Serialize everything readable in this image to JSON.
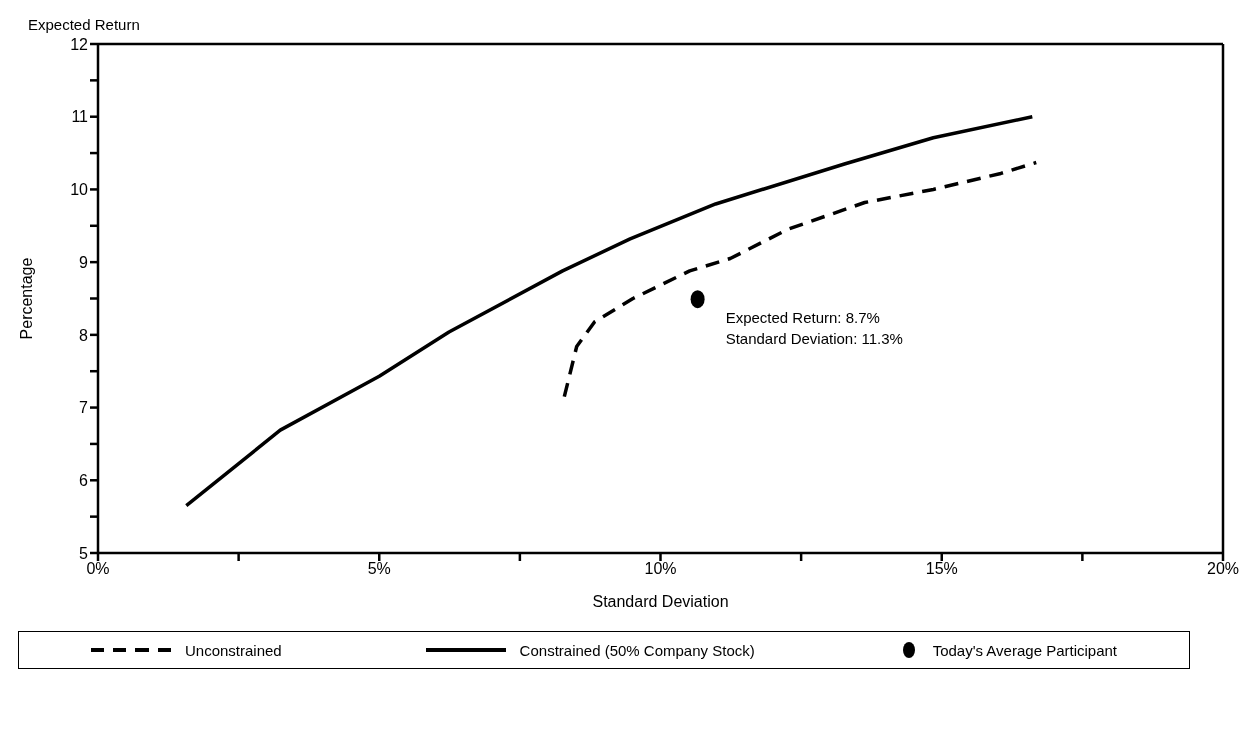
{
  "chart_data": {
    "type": "line",
    "title": "Expected Return",
    "xlabel": "Standard Deviation",
    "ylabel": "Percentage",
    "xlim": [
      0,
      20
    ],
    "xticks": [
      {
        "value": 0,
        "label": "0%"
      },
      {
        "value": 2.5,
        "label": null
      },
      {
        "value": 5,
        "label": "5%"
      },
      {
        "value": 7.5,
        "label": null
      },
      {
        "value": 10,
        "label": "10%"
      },
      {
        "value": 12.5,
        "label": null
      },
      {
        "value": 15,
        "label": "15%"
      },
      {
        "value": 17.5,
        "label": null
      },
      {
        "value": 20,
        "label": "20%"
      }
    ],
    "ylim": [
      5,
      12
    ],
    "yticks": [
      5,
      {
        "value": 5.5,
        "label": null
      },
      6,
      {
        "value": 6.5,
        "label": null
      },
      7,
      {
        "value": 7.5,
        "label": null
      },
      8,
      {
        "value": 8.5,
        "label": null
      },
      9,
      {
        "value": 9.5,
        "label": null
      },
      10,
      {
        "value": 10.5,
        "label": null
      },
      11,
      {
        "value": 11.5,
        "label": null
      },
      12
    ],
    "legend": "bottom",
    "series": [
      {
        "name": "Unconstrained",
        "color": "#000000",
        "line_style": "dashed",
        "marker": "none",
        "x": [
          8.29,
          8.51,
          8.83,
          9.51,
          10.52,
          11.24,
          12.26,
          13.63,
          14.85,
          16.05,
          16.68
        ],
        "values": [
          7.15,
          7.84,
          8.18,
          8.5,
          8.88,
          9.05,
          9.45,
          9.82,
          10.0,
          10.22,
          10.37
        ]
      },
      {
        "name": "Constrained (50% Company Stock)",
        "color": "#000000",
        "line_style": "solid",
        "marker": "none",
        "x": [
          1.57,
          3.24,
          5.0,
          6.24,
          8.26,
          9.46,
          10.98,
          13.27,
          14.85,
          16.61
        ],
        "values": [
          5.65,
          6.69,
          7.43,
          8.04,
          8.88,
          9.32,
          9.8,
          10.35,
          10.71,
          11.0
        ]
      },
      {
        "name": "Today's Average Participant",
        "type": "scatter",
        "color": "#000000",
        "marker": "circle",
        "x": [
          10.66
        ],
        "values": [
          8.49
        ]
      }
    ],
    "annotations": [
      {
        "text": "Expected Return: 8.7%\nStandard Deviation: 11.3%",
        "x": 10.66,
        "y": 8.49
      }
    ]
  }
}
